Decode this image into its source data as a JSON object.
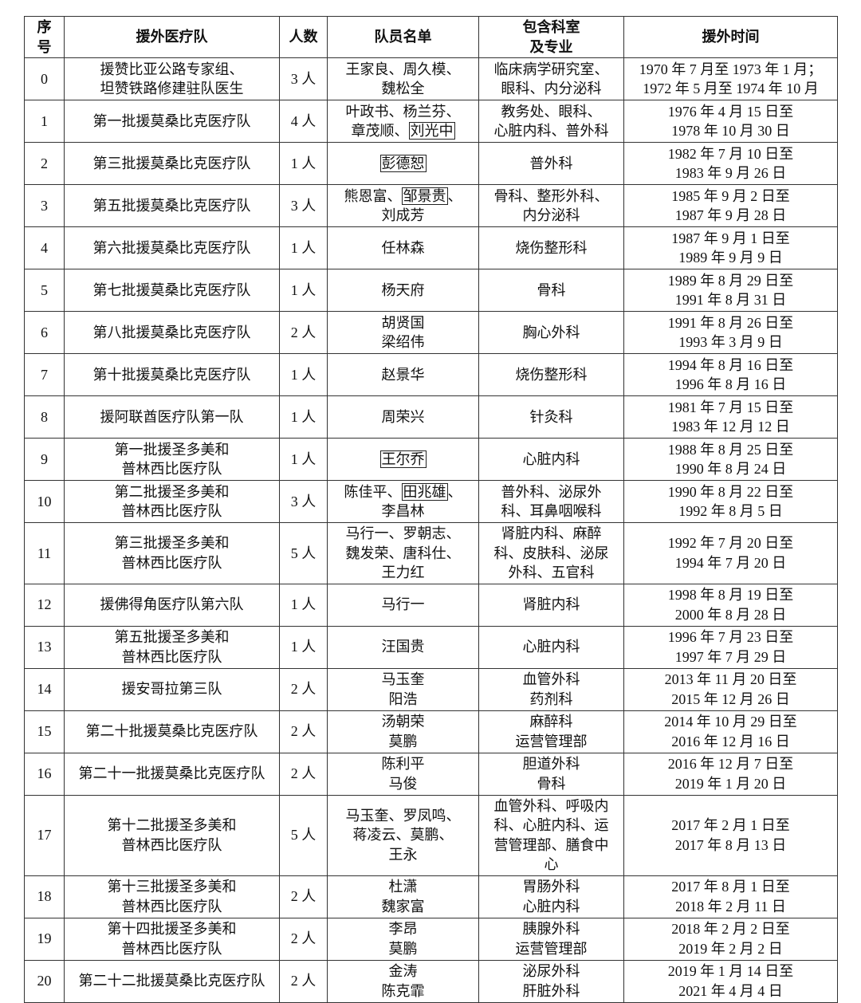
{
  "table": {
    "header": [
      "序\n号",
      "援外医疗队",
      "人数",
      "队员名单",
      "包含科室\n及专业",
      "援外时间"
    ],
    "rows": [
      [
        "0",
        "援赞比亚公路专家组、\n坦赞铁路修建驻队医生",
        "3 人",
        [
          "王家良、周久模、\n魏松全"
        ],
        "临床病学研究室、\n眼科、内分泌科",
        "1970 年 7 月至 1973 年 1 月；\n1972 年 5 月至 1974 年 10 月"
      ],
      [
        "1",
        "第一批援莫桑比克医疗队",
        "4 人",
        [
          "叶政书、杨兰芬、\n章茂顺、",
          {
            "text": "刘光中",
            "boxed": true
          }
        ],
        "教务处、眼科、\n心脏内科、普外科",
        "1976 年 4 月 15 日至\n1978 年 10 月 30 日"
      ],
      [
        "2",
        "第三批援莫桑比克医疗队",
        "1 人",
        [
          {
            "text": "彭德恕",
            "boxed": true
          }
        ],
        "普外科",
        "1982 年 7 月 10 日至\n1983 年 9 月 26 日"
      ],
      [
        "3",
        "第五批援莫桑比克医疗队",
        "3 人",
        [
          "熊恩富、",
          {
            "text": "邹景贵",
            "boxed": true
          },
          "、\n刘成芳"
        ],
        "骨科、整形外科、\n内分泌科",
        "1985 年 9 月 2 日至\n1987 年 9 月 28 日"
      ],
      [
        "4",
        "第六批援莫桑比克医疗队",
        "1 人",
        [
          "任林森"
        ],
        "烧伤整形科",
        "1987 年 9 月 1 日至\n1989 年 9 月 9 日"
      ],
      [
        "5",
        "第七批援莫桑比克医疗队",
        "1 人",
        [
          "杨天府"
        ],
        "骨科",
        "1989 年 8 月 29 日至\n1991 年 8 月 31 日"
      ],
      [
        "6",
        "第八批援莫桑比克医疗队",
        "2 人",
        [
          "胡贤国\n梁绍伟"
        ],
        "胸心外科",
        "1991 年 8 月 26 日至\n1993 年 3 月 9 日"
      ],
      [
        "7",
        "第十批援莫桑比克医疗队",
        "1 人",
        [
          "赵景华"
        ],
        "烧伤整形科",
        "1994 年 8 月 16 日至\n1996 年 8 月 16 日"
      ],
      [
        "8",
        "援阿联酋医疗队第一队",
        "1 人",
        [
          "周荣兴"
        ],
        "针灸科",
        "1981 年 7 月 15 日至\n1983 年 12 月 12 日"
      ],
      [
        "9",
        "第一批援圣多美和\n普林西比医疗队",
        "1 人",
        [
          {
            "text": "王尔乔",
            "boxed": true
          }
        ],
        "心脏内科",
        "1988 年 8 月 25 日至\n1990 年 8 月 24 日"
      ],
      [
        "10",
        "第二批援圣多美和\n普林西比医疗队",
        "3 人",
        [
          "陈佳平、",
          {
            "text": "田兆雄",
            "boxed": true
          },
          "、\n李昌林"
        ],
        "普外科、泌尿外\n科、耳鼻咽喉科",
        "1990 年 8 月 22 日至\n1992 年 8 月 5 日"
      ],
      [
        "11",
        "第三批援圣多美和\n普林西比医疗队",
        "5 人",
        [
          "马行一、罗朝志、\n魏发荣、唐科仕、\n王力红"
        ],
        "肾脏内科、麻醉\n科、皮肤科、泌尿\n外科、五官科",
        "1992 年 7 月 20 日至\n1994 年 7 月 20 日"
      ],
      [
        "12",
        "援佛得角医疗队第六队",
        "1 人",
        [
          "马行一"
        ],
        "肾脏内科",
        "1998 年 8 月 19 日至\n2000 年 8 月 28 日"
      ],
      [
        "13",
        "第五批援圣多美和\n普林西比医疗队",
        "1 人",
        [
          "汪国贵"
        ],
        "心脏内科",
        "1996 年 7 月 23 日至\n1997 年 7 月 29 日"
      ],
      [
        "14",
        "援安哥拉第三队",
        "2 人",
        [
          "马玉奎\n阳浩"
        ],
        "血管外科\n药剂科",
        "2013 年 11 月 20 日至\n2015 年 12 月 26 日"
      ],
      [
        "15",
        "第二十批援莫桑比克医疗队",
        "2 人",
        [
          "汤朝荣\n莫鹏"
        ],
        "麻醉科\n运营管理部",
        "2014 年 10 月 29 日至\n2016 年 12 月 16 日"
      ],
      [
        "16",
        "第二十一批援莫桑比克医疗队",
        "2 人",
        [
          "陈利平\n马俊"
        ],
        "胆道外科\n骨科",
        "2016 年 12 月 7 日至\n2019 年 1 月 20 日"
      ],
      [
        "17",
        "第十二批援圣多美和\n普林西比医疗队",
        "5 人",
        [
          "马玉奎、罗凤鸣、\n蒋凌云、莫鹏、\n王永"
        ],
        "血管外科、呼吸内\n科、心脏内科、运\n营管理部、膳食中\n心",
        "2017 年 2 月 1 日至\n2017 年 8 月 13 日"
      ],
      [
        "18",
        "第十三批援圣多美和\n普林西比医疗队",
        "2 人",
        [
          "杜潇\n魏家富"
        ],
        "胃肠外科\n心脏内科",
        "2017 年 8 月 1 日至\n2018 年 2 月 11 日"
      ],
      [
        "19",
        "第十四批援圣多美和\n普林西比医疗队",
        "2 人",
        [
          "李昂\n莫鹏"
        ],
        "胰腺外科\n运营管理部",
        "2018 年 2 月 2 日至\n2019 年 2 月 2 日"
      ],
      [
        "20",
        "第二十二批援莫桑比克医疗队",
        "2 人",
        [
          "金涛\n陈克霏"
        ],
        "泌尿外科\n肝脏外科",
        "2019 年 1 月 14 日至\n2021 年 4 月 4 日"
      ]
    ]
  }
}
